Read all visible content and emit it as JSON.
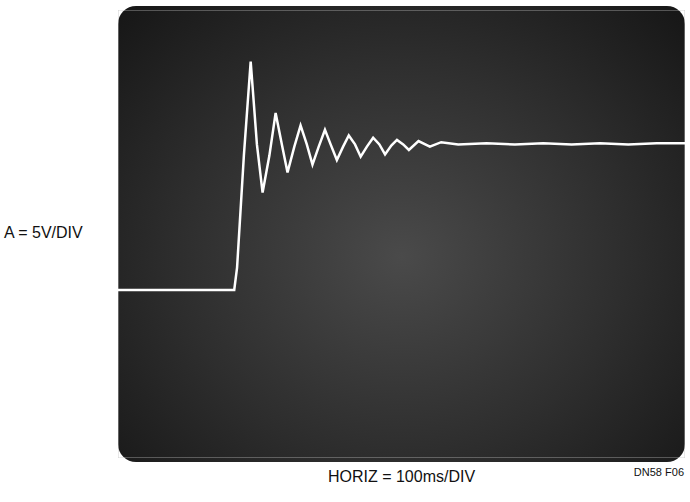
{
  "chart_data": {
    "type": "line",
    "x_label": "HORIZ = 100ms/DIV",
    "y_label": "A = 5V/DIV",
    "annotation": "DN58 F06",
    "x": [
      0,
      100,
      205,
      210,
      222,
      234,
      245,
      255,
      267,
      278,
      289,
      299,
      311,
      322,
      333,
      343,
      354,
      365,
      375,
      386,
      397,
      407,
      418,
      428,
      439,
      450,
      461,
      471,
      482,
      492,
      503,
      513,
      530,
      550,
      570,
      600,
      650,
      700,
      750,
      800,
      850,
      900,
      950,
      1000
    ],
    "values": [
      0,
      0,
      0,
      2,
      12,
      20.4,
      13,
      8.7,
      12,
      15.8,
      13,
      10.5,
      12.8,
      14.7,
      13,
      11.2,
      12.8,
      14.3,
      13,
      11.6,
      12.8,
      13.8,
      13,
      11.9,
      12.8,
      13.6,
      13,
      12.1,
      12.9,
      13.4,
      13,
      12.5,
      13.3,
      12.8,
      13.2,
      13,
      13.1,
      13,
      13.1,
      13,
      13.1,
      13,
      13.1,
      13.1
    ],
    "color": "#ffffff",
    "xlim": [
      0,
      1000
    ],
    "xticks": [
      0,
      100,
      200,
      300,
      400,
      500,
      600,
      700,
      800,
      900,
      1000
    ],
    "ylim": [
      -15,
      25
    ],
    "yticks": [
      -15,
      -10,
      -5,
      0,
      5,
      10,
      15,
      20,
      25
    ],
    "grid": true,
    "tick_labels": false
  }
}
